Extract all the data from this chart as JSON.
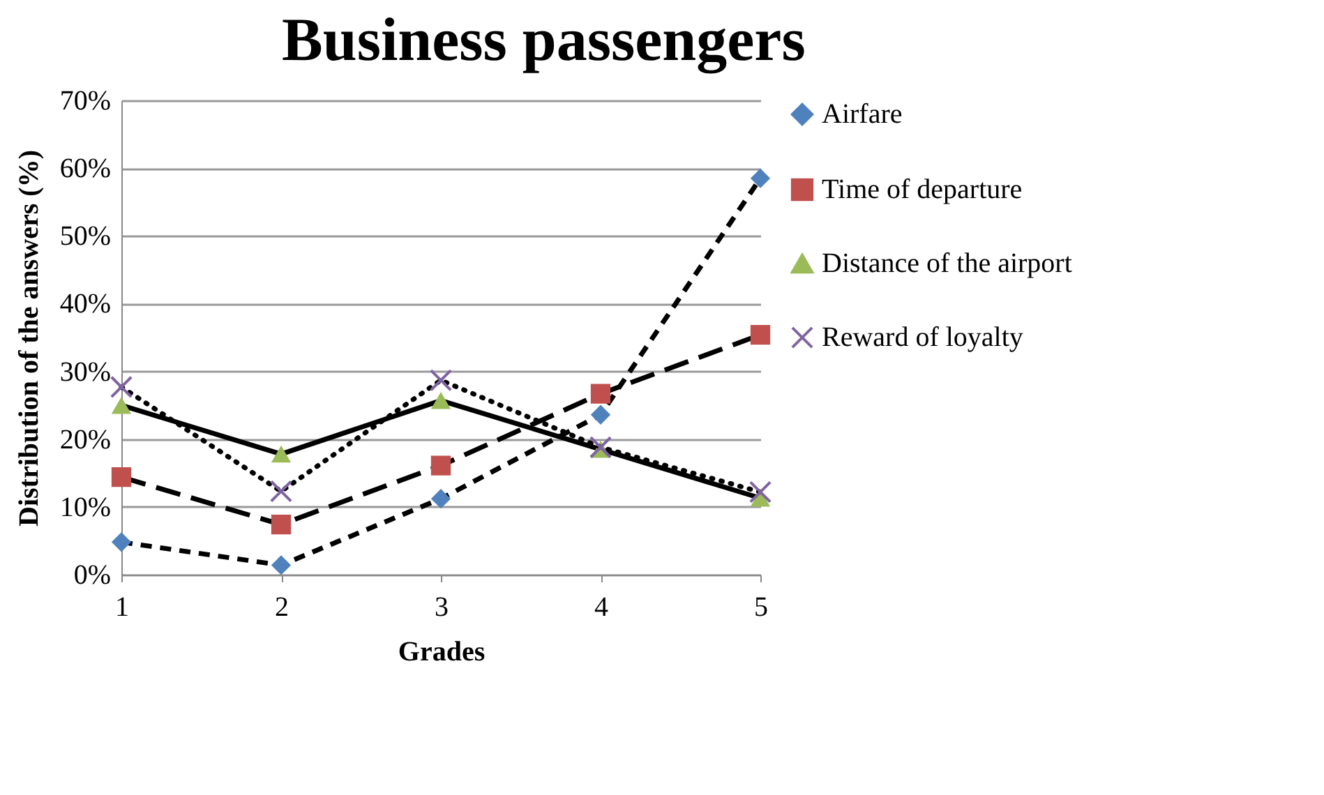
{
  "chart_data": {
    "type": "line",
    "title": "Business passengers",
    "xlabel": "Grades",
    "ylabel": "Distribution of the answers (%)",
    "categories": [
      "1",
      "2",
      "3",
      "4",
      "5"
    ],
    "series": [
      {
        "name": "Airfare",
        "color": "#4f81bd",
        "marker": "diamond",
        "line_style": "dashed",
        "values": [
          4.8,
          1.4,
          11.2,
          23.6,
          58.5
        ]
      },
      {
        "name": "Time of departure",
        "color": "#c0504d",
        "marker": "square",
        "line_style": "longdash",
        "values": [
          14.4,
          7.4,
          16.1,
          26.7,
          35.4
        ]
      },
      {
        "name": "Distance of the airport",
        "color": "#9bbb59",
        "marker": "triangle",
        "line_style": "solid",
        "values": [
          25.0,
          17.8,
          25.7,
          18.5,
          11.3
        ]
      },
      {
        "name": "Reward of loyalty",
        "color": "#8064a2",
        "marker": "cross",
        "line_style": "dotted",
        "values": [
          27.7,
          12.3,
          28.7,
          18.8,
          12.2
        ]
      }
    ],
    "ylim": [
      0,
      70
    ],
    "yticks": [
      {
        "value": 0,
        "label": "0%"
      },
      {
        "value": 10,
        "label": "10%"
      },
      {
        "value": 20,
        "label": "20%"
      },
      {
        "value": 30,
        "label": "30%"
      },
      {
        "value": 40,
        "label": "40%"
      },
      {
        "value": 50,
        "label": "50%"
      },
      {
        "value": 60,
        "label": "60%"
      },
      {
        "value": 70,
        "label": "70%"
      }
    ],
    "grid": "y",
    "legend": "right"
  }
}
